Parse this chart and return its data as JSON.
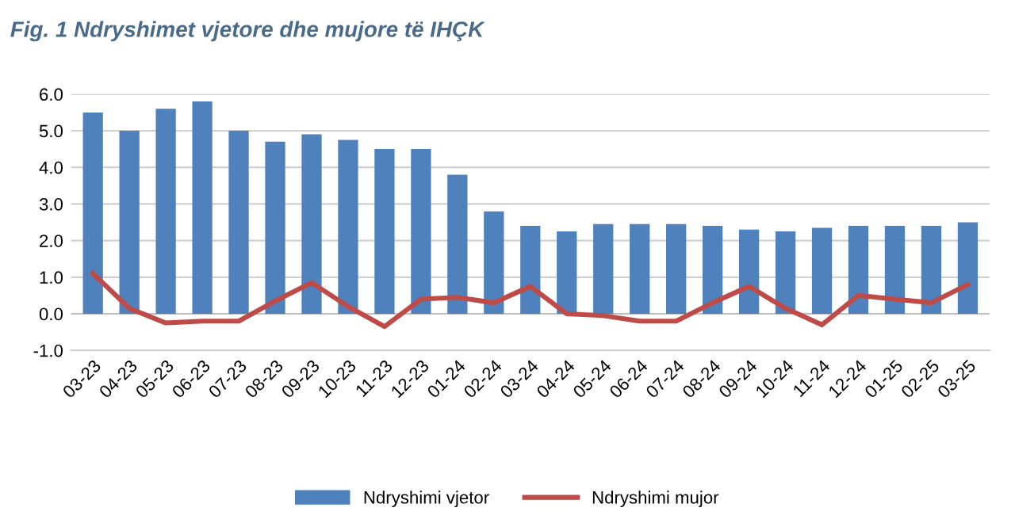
{
  "chart_data": {
    "type": "bar",
    "title": "Fig. 1 Ndryshimet vjetore dhe mujore të IHÇK",
    "categories": [
      "03-23",
      "04-23",
      "05-23",
      "06-23",
      "07-23",
      "08-23",
      "09-23",
      "10-23",
      "11-23",
      "12-23",
      "01-24",
      "02-24",
      "03-24",
      "04-24",
      "05-24",
      "06-24",
      "07-24",
      "08-24",
      "09-24",
      "10-24",
      "11-24",
      "12-24",
      "01-25",
      "02-25",
      "03-25"
    ],
    "series": [
      {
        "name": "Ndryshimi vjetor",
        "color": "#4f81bd",
        "values": [
          5.5,
          5.0,
          5.6,
          5.8,
          5.0,
          4.7,
          4.9,
          4.75,
          4.5,
          4.5,
          3.8,
          2.8,
          2.4,
          2.25,
          2.45,
          2.45,
          2.45,
          2.4,
          2.3,
          2.25,
          2.35,
          2.4,
          2.4,
          2.4,
          2.5
        ]
      },
      {
        "name": "Ndryshimi mujor",
        "type": "line",
        "color": "#be4b48",
        "values": [
          1.1,
          0.15,
          -0.25,
          -0.2,
          -0.2,
          0.35,
          0.85,
          0.2,
          -0.35,
          0.4,
          0.45,
          0.3,
          0.75,
          0.0,
          -0.05,
          -0.2,
          -0.2,
          0.3,
          0.75,
          0.15,
          -0.3,
          0.5,
          0.4,
          0.3,
          0.8
        ]
      }
    ],
    "ylim": [
      -1.0,
      6.0
    ],
    "yticks": [
      {
        "value": -1.0,
        "label": "-1.0"
      },
      {
        "value": 0.0,
        "label": "0.0"
      },
      {
        "value": 1.0,
        "label": "1.0"
      },
      {
        "value": 2.0,
        "label": "2.0"
      },
      {
        "value": 3.0,
        "label": "3.0"
      },
      {
        "value": 4.0,
        "label": "4.0"
      },
      {
        "value": 5.0,
        "label": "5.0"
      },
      {
        "value": 6.0,
        "label": "6.0"
      }
    ],
    "grid": "y",
    "legend": "bottom",
    "marker": "none"
  }
}
